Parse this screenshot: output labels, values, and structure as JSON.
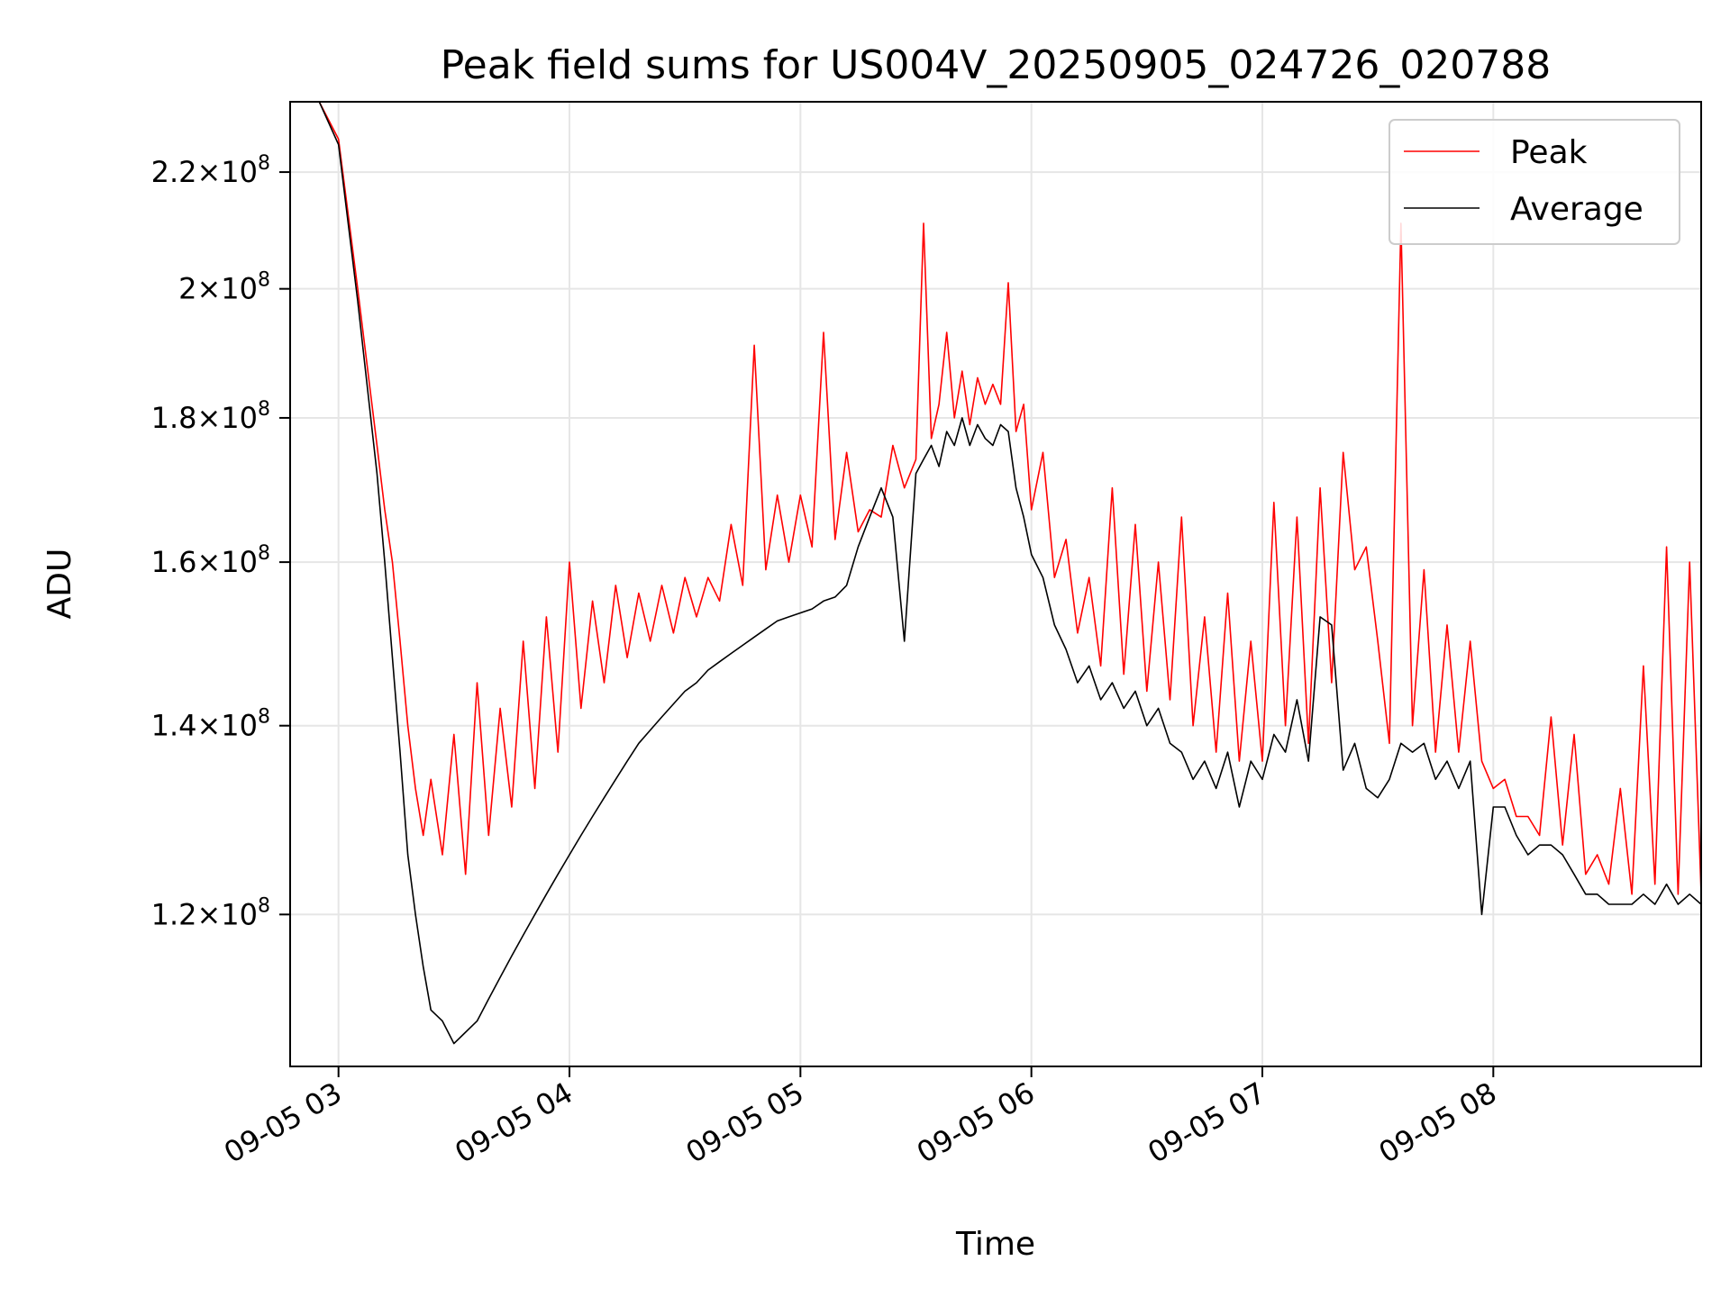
{
  "chart_data": {
    "type": "line",
    "title": "Peak field sums for US004V_20250905_024726_020788",
    "xlabel": "Time",
    "ylabel": "ADU",
    "y_scale": "log",
    "grid": true,
    "legend_placement": "top-right",
    "xlim": [
      "2025-09-05 02:47:26",
      "2025-09-05 08:54:00"
    ],
    "ylim": [
      106000000,
      233000000
    ],
    "x_ticks": [
      {
        "label": "09-05 03",
        "value": "2025-09-05 03:00"
      },
      {
        "label": "09-05 04",
        "value": "2025-09-05 04:00"
      },
      {
        "label": "09-05 05",
        "value": "2025-09-05 05:00"
      },
      {
        "label": "09-05 06",
        "value": "2025-09-05 06:00"
      },
      {
        "label": "09-05 07",
        "value": "2025-09-05 07:00"
      },
      {
        "label": "09-05 08",
        "value": "2025-09-05 08:00"
      }
    ],
    "y_ticks": [
      {
        "mantissa": "1.2",
        "exponent": "8",
        "value": 120000000
      },
      {
        "mantissa": "1.4",
        "exponent": "8",
        "value": 140000000
      },
      {
        "mantissa": "1.6",
        "exponent": "8",
        "value": 160000000
      },
      {
        "mantissa": "1.8",
        "exponent": "8",
        "value": 180000000
      },
      {
        "mantissa": "2",
        "exponent": "8",
        "value": 200000000
      },
      {
        "mantissa": "2.2",
        "exponent": "8",
        "value": 220000000
      }
    ],
    "series": [
      {
        "name": "Peak",
        "color": "#ff0000",
        "x": [
          "2025-09-05 02:47:26",
          "2025-09-05 02:55",
          "2025-09-05 03:00",
          "2025-09-05 03:05",
          "2025-09-05 03:10",
          "2025-09-05 03:12",
          "2025-09-05 03:14",
          "2025-09-05 03:16",
          "2025-09-05 03:18",
          "2025-09-05 03:20",
          "2025-09-05 03:22",
          "2025-09-05 03:24",
          "2025-09-05 03:27",
          "2025-09-05 03:30",
          "2025-09-05 03:33",
          "2025-09-05 03:36",
          "2025-09-05 03:39",
          "2025-09-05 03:42",
          "2025-09-05 03:45",
          "2025-09-05 03:48",
          "2025-09-05 03:51",
          "2025-09-05 03:54",
          "2025-09-05 03:57",
          "2025-09-05 04:00",
          "2025-09-05 04:03",
          "2025-09-05 04:06",
          "2025-09-05 04:09",
          "2025-09-05 04:12",
          "2025-09-05 04:15",
          "2025-09-05 04:18",
          "2025-09-05 04:21",
          "2025-09-05 04:24",
          "2025-09-05 04:27",
          "2025-09-05 04:30",
          "2025-09-05 04:33",
          "2025-09-05 04:36",
          "2025-09-05 04:39",
          "2025-09-05 04:42",
          "2025-09-05 04:45",
          "2025-09-05 04:48",
          "2025-09-05 04:51",
          "2025-09-05 04:54",
          "2025-09-05 04:57",
          "2025-09-05 05:00",
          "2025-09-05 05:03",
          "2025-09-05 05:06",
          "2025-09-05 05:09",
          "2025-09-05 05:12",
          "2025-09-05 05:15",
          "2025-09-05 05:18",
          "2025-09-05 05:21",
          "2025-09-05 05:24",
          "2025-09-05 05:27",
          "2025-09-05 05:30",
          "2025-09-05 05:32",
          "2025-09-05 05:34",
          "2025-09-05 05:36",
          "2025-09-05 05:38",
          "2025-09-05 05:40",
          "2025-09-05 05:42",
          "2025-09-05 05:44",
          "2025-09-05 05:46",
          "2025-09-05 05:48",
          "2025-09-05 05:50",
          "2025-09-05 05:52",
          "2025-09-05 05:54",
          "2025-09-05 05:56",
          "2025-09-05 05:58",
          "2025-09-05 06:00",
          "2025-09-05 06:03",
          "2025-09-05 06:06",
          "2025-09-05 06:09",
          "2025-09-05 06:12",
          "2025-09-05 06:15",
          "2025-09-05 06:18",
          "2025-09-05 06:21",
          "2025-09-05 06:24",
          "2025-09-05 06:27",
          "2025-09-05 06:30",
          "2025-09-05 06:33",
          "2025-09-05 06:36",
          "2025-09-05 06:39",
          "2025-09-05 06:42",
          "2025-09-05 06:45",
          "2025-09-05 06:48",
          "2025-09-05 06:51",
          "2025-09-05 06:54",
          "2025-09-05 06:57",
          "2025-09-05 07:00",
          "2025-09-05 07:03",
          "2025-09-05 07:06",
          "2025-09-05 07:09",
          "2025-09-05 07:12",
          "2025-09-05 07:15",
          "2025-09-05 07:18",
          "2025-09-05 07:21",
          "2025-09-05 07:24",
          "2025-09-05 07:27",
          "2025-09-05 07:30",
          "2025-09-05 07:33",
          "2025-09-05 07:36",
          "2025-09-05 07:39",
          "2025-09-05 07:42",
          "2025-09-05 07:45",
          "2025-09-05 07:48",
          "2025-09-05 07:51",
          "2025-09-05 07:54",
          "2025-09-05 07:57",
          "2025-09-05 08:00",
          "2025-09-05 08:03",
          "2025-09-05 08:06",
          "2025-09-05 08:09",
          "2025-09-05 08:12",
          "2025-09-05 08:15",
          "2025-09-05 08:18",
          "2025-09-05 08:21",
          "2025-09-05 08:24",
          "2025-09-05 08:27",
          "2025-09-05 08:30",
          "2025-09-05 08:33",
          "2025-09-05 08:36",
          "2025-09-05 08:39",
          "2025-09-05 08:42",
          "2025-09-05 08:45",
          "2025-09-05 08:48",
          "2025-09-05 08:51",
          "2025-09-05 08:54"
        ],
        "values": [
          233000000,
          233000000,
          226000000,
          200000000,
          176000000,
          167000000,
          160000000,
          150000000,
          140000000,
          133000000,
          128000000,
          134000000,
          126000000,
          139000000,
          124000000,
          145000000,
          128000000,
          142000000,
          131000000,
          150000000,
          133000000,
          153000000,
          137000000,
          160000000,
          142000000,
          155000000,
          145000000,
          157000000,
          148000000,
          156000000,
          150000000,
          157000000,
          151000000,
          158000000,
          153000000,
          158000000,
          155000000,
          165000000,
          157000000,
          191000000,
          159000000,
          169000000,
          160000000,
          169000000,
          162000000,
          193000000,
          163000000,
          175000000,
          164000000,
          167000000,
          166000000,
          176000000,
          170000000,
          174000000,
          211000000,
          177000000,
          182000000,
          193000000,
          180000000,
          187000000,
          179000000,
          186000000,
          182000000,
          185000000,
          182000000,
          201000000,
          178000000,
          182000000,
          167000000,
          175000000,
          158000000,
          163000000,
          151000000,
          158000000,
          147000000,
          170000000,
          146000000,
          165000000,
          144000000,
          160000000,
          143000000,
          166000000,
          140000000,
          153000000,
          137000000,
          156000000,
          136000000,
          150000000,
          136000000,
          168000000,
          140000000,
          166000000,
          138000000,
          170000000,
          145000000,
          175000000,
          159000000,
          162000000,
          150000000,
          138000000,
          211000000,
          140000000,
          159000000,
          137000000,
          152000000,
          137000000,
          150000000,
          136000000,
          133000000,
          134000000,
          130000000,
          130000000,
          128000000,
          141000000,
          127000000,
          139000000,
          124000000,
          126000000,
          123000000,
          133000000,
          122000000,
          147000000,
          123000000,
          162000000,
          122000000,
          160000000,
          122000000
        ]
      },
      {
        "name": "Average",
        "color": "#000000",
        "x": [
          "2025-09-05 02:47:26",
          "2025-09-05 02:55",
          "2025-09-05 03:00",
          "2025-09-05 03:05",
          "2025-09-05 03:10",
          "2025-09-05 03:12",
          "2025-09-05 03:14",
          "2025-09-05 03:16",
          "2025-09-05 03:18",
          "2025-09-05 03:20",
          "2025-09-05 03:22",
          "2025-09-05 03:24",
          "2025-09-05 03:27",
          "2025-09-05 03:30",
          "2025-09-05 03:33",
          "2025-09-05 03:36",
          "2025-09-05 03:39",
          "2025-09-05 03:42",
          "2025-09-05 03:45",
          "2025-09-05 03:48",
          "2025-09-05 03:51",
          "2025-09-05 03:54",
          "2025-09-05 03:57",
          "2025-09-05 04:00",
          "2025-09-05 04:03",
          "2025-09-05 04:06",
          "2025-09-05 04:09",
          "2025-09-05 04:12",
          "2025-09-05 04:15",
          "2025-09-05 04:18",
          "2025-09-05 04:21",
          "2025-09-05 04:24",
          "2025-09-05 04:27",
          "2025-09-05 04:30",
          "2025-09-05 04:33",
          "2025-09-05 04:36",
          "2025-09-05 04:39",
          "2025-09-05 04:42",
          "2025-09-05 04:45",
          "2025-09-05 04:48",
          "2025-09-05 04:51",
          "2025-09-05 04:54",
          "2025-09-05 04:57",
          "2025-09-05 05:00",
          "2025-09-05 05:03",
          "2025-09-05 05:06",
          "2025-09-05 05:09",
          "2025-09-05 05:12",
          "2025-09-05 05:15",
          "2025-09-05 05:18",
          "2025-09-05 05:21",
          "2025-09-05 05:24",
          "2025-09-05 05:27",
          "2025-09-05 05:30",
          "2025-09-05 05:32",
          "2025-09-05 05:34",
          "2025-09-05 05:36",
          "2025-09-05 05:38",
          "2025-09-05 05:40",
          "2025-09-05 05:42",
          "2025-09-05 05:44",
          "2025-09-05 05:46",
          "2025-09-05 05:48",
          "2025-09-05 05:50",
          "2025-09-05 05:52",
          "2025-09-05 05:54",
          "2025-09-05 05:56",
          "2025-09-05 05:58",
          "2025-09-05 06:00",
          "2025-09-05 06:03",
          "2025-09-05 06:06",
          "2025-09-05 06:09",
          "2025-09-05 06:12",
          "2025-09-05 06:15",
          "2025-09-05 06:18",
          "2025-09-05 06:21",
          "2025-09-05 06:24",
          "2025-09-05 06:27",
          "2025-09-05 06:30",
          "2025-09-05 06:33",
          "2025-09-05 06:36",
          "2025-09-05 06:39",
          "2025-09-05 06:42",
          "2025-09-05 06:45",
          "2025-09-05 06:48",
          "2025-09-05 06:51",
          "2025-09-05 06:54",
          "2025-09-05 06:57",
          "2025-09-05 07:00",
          "2025-09-05 07:03",
          "2025-09-05 07:06",
          "2025-09-05 07:09",
          "2025-09-05 07:12",
          "2025-09-05 07:15",
          "2025-09-05 07:18",
          "2025-09-05 07:21",
          "2025-09-05 07:24",
          "2025-09-05 07:27",
          "2025-09-05 07:30",
          "2025-09-05 07:33",
          "2025-09-05 07:36",
          "2025-09-05 07:39",
          "2025-09-05 07:42",
          "2025-09-05 07:45",
          "2025-09-05 07:48",
          "2025-09-05 07:51",
          "2025-09-05 07:54",
          "2025-09-05 07:57",
          "2025-09-05 08:00",
          "2025-09-05 08:03",
          "2025-09-05 08:06",
          "2025-09-05 08:09",
          "2025-09-05 08:12",
          "2025-09-05 08:15",
          "2025-09-05 08:18",
          "2025-09-05 08:21",
          "2025-09-05 08:24",
          "2025-09-05 08:27",
          "2025-09-05 08:30",
          "2025-09-05 08:33",
          "2025-09-05 08:36",
          "2025-09-05 08:39",
          "2025-09-05 08:42",
          "2025-09-05 08:45",
          "2025-09-05 08:48",
          "2025-09-05 08:51",
          "2025-09-05 08:54"
        ],
        "values": [
          233000000,
          233000000,
          225000000,
          198000000,
          172000000,
          160000000,
          148000000,
          137000000,
          126000000,
          120000000,
          115000000,
          111000000,
          110000000,
          108000000,
          109000000,
          110000000,
          112000000,
          114000000,
          116000000,
          118000000,
          120000000,
          122000000,
          124000000,
          126000000,
          128000000,
          130000000,
          132000000,
          134000000,
          136000000,
          138000000,
          139500000,
          141000000,
          142500000,
          144000000,
          145000000,
          146500000,
          147500000,
          148500000,
          149500000,
          150500000,
          151500000,
          152500000,
          153000000,
          153500000,
          154000000,
          155000000,
          155500000,
          157000000,
          162000000,
          166000000,
          170000000,
          166000000,
          150000000,
          172000000,
          174000000,
          176000000,
          173000000,
          178000000,
          176000000,
          180000000,
          176000000,
          179000000,
          177000000,
          176000000,
          179000000,
          178000000,
          170000000,
          166000000,
          161000000,
          158000000,
          152000000,
          149000000,
          145000000,
          147000000,
          143000000,
          145000000,
          142000000,
          144000000,
          140000000,
          142000000,
          138000000,
          137000000,
          134000000,
          136000000,
          133000000,
          137000000,
          131000000,
          136000000,
          134000000,
          139000000,
          137000000,
          143000000,
          136000000,
          153000000,
          152000000,
          135000000,
          138000000,
          133000000,
          132000000,
          134000000,
          138000000,
          137000000,
          138000000,
          134000000,
          136000000,
          133000000,
          136000000,
          120000000,
          131000000,
          131000000,
          128000000,
          126000000,
          127000000,
          127000000,
          126000000,
          124000000,
          122000000,
          122000000,
          121000000,
          121000000,
          121000000,
          122000000,
          121000000,
          123000000,
          121000000,
          122000000,
          121000000
        ]
      }
    ]
  }
}
